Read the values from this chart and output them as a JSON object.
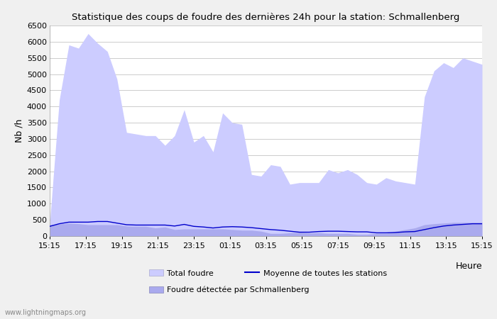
{
  "title": "Statistique des coups de foudre des dernières 24h pour la station: Schmallenberg",
  "xlabel": "Heure",
  "ylabel": "Nb /h",
  "ylim": [
    0,
    6500
  ],
  "yticks": [
    0,
    500,
    1000,
    1500,
    2000,
    2500,
    3000,
    3500,
    4000,
    4500,
    5000,
    5500,
    6000,
    6500
  ],
  "xtick_labels": [
    "15:15",
    "17:15",
    "19:15",
    "21:15",
    "23:15",
    "01:15",
    "03:15",
    "05:15",
    "07:15",
    "09:15",
    "11:15",
    "13:15",
    "15:15"
  ],
  "bg_color": "#f0f0f0",
  "plot_bg_color": "#ffffff",
  "grid_color": "#cccccc",
  "fill_total_color": "#ccccff",
  "fill_schmallenberg_color": "#aaaaee",
  "line_moyenne_color": "#0000cc",
  "watermark": "www.lightningmaps.org",
  "legend": {
    "total_foudre": "Total foudre",
    "moyenne": "Moyenne de toutes les stations",
    "schmallenberg": "Foudre détectée par Schmallenberg"
  },
  "total_foudre": [
    400,
    4200,
    5900,
    5800,
    6250,
    5950,
    5700,
    4850,
    3200,
    3150,
    3100,
    3100,
    2800,
    3100,
    3900,
    2900,
    3100,
    2600,
    3800,
    3500,
    3450,
    1900,
    1850,
    2200,
    2150,
    1600,
    1650,
    1650,
    1650,
    2050,
    1950,
    2050,
    1900,
    1650,
    1600,
    1800,
    1700,
    1650,
    1600,
    4300,
    5100,
    5350,
    5200,
    5500,
    5400,
    5300
  ],
  "schmallenberg": [
    350,
    370,
    400,
    380,
    350,
    350,
    350,
    350,
    310,
    300,
    300,
    250,
    280,
    200,
    220,
    220,
    220,
    220,
    220,
    200,
    180,
    180,
    150,
    80,
    80,
    100,
    120,
    100,
    100,
    80,
    80,
    80,
    50,
    50,
    80,
    80,
    150,
    200,
    250,
    350,
    380,
    400,
    420,
    420,
    420,
    420
  ],
  "moyenne": [
    300,
    380,
    430,
    430,
    430,
    450,
    450,
    400,
    350,
    340,
    340,
    340,
    340,
    310,
    360,
    300,
    280,
    250,
    280,
    290,
    280,
    260,
    230,
    200,
    180,
    150,
    120,
    120,
    140,
    150,
    150,
    140,
    130,
    130,
    100,
    100,
    110,
    130,
    140,
    200,
    260,
    310,
    340,
    360,
    380,
    380
  ]
}
